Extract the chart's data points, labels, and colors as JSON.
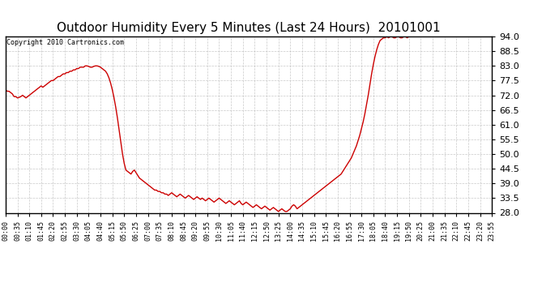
{
  "title": "Outdoor Humidity Every 5 Minutes (Last 24 Hours)  20101001",
  "copyright_text": "Copyright 2010 Cartronics.com",
  "y_ticks": [
    28.0,
    33.5,
    39.0,
    44.5,
    50.0,
    55.5,
    61.0,
    66.5,
    72.0,
    77.5,
    83.0,
    88.5,
    94.0
  ],
  "ylim": [
    28.0,
    94.0
  ],
  "line_color": "#cc0000",
  "bg_color": "#ffffff",
  "grid_color": "#bbbbbb",
  "title_fontsize": 11,
  "x_labels": [
    "00:00",
    "00:35",
    "01:10",
    "01:45",
    "02:20",
    "02:55",
    "03:30",
    "04:05",
    "04:40",
    "05:15",
    "05:50",
    "06:25",
    "07:00",
    "07:35",
    "08:10",
    "08:45",
    "09:20",
    "09:55",
    "10:30",
    "11:05",
    "11:40",
    "12:15",
    "12:50",
    "13:25",
    "14:00",
    "14:35",
    "15:10",
    "15:45",
    "16:20",
    "16:55",
    "17:30",
    "18:05",
    "18:40",
    "19:15",
    "19:50",
    "20:25",
    "21:00",
    "21:35",
    "22:10",
    "22:45",
    "23:20",
    "23:55"
  ],
  "humidity_data": [
    74.0,
    73.5,
    73.5,
    73.0,
    72.5,
    71.5,
    71.5,
    71.0,
    71.2,
    71.5,
    72.0,
    71.5,
    71.0,
    71.5,
    72.0,
    72.5,
    73.0,
    73.5,
    74.0,
    74.5,
    75.0,
    75.5,
    75.0,
    75.5,
    76.0,
    76.5,
    77.0,
    77.5,
    77.5,
    78.0,
    78.5,
    79.0,
    79.0,
    79.5,
    80.0,
    80.0,
    80.5,
    80.5,
    81.0,
    81.0,
    81.5,
    81.5,
    82.0,
    82.0,
    82.5,
    82.5,
    82.5,
    83.0,
    83.0,
    82.8,
    82.5,
    82.5,
    82.8,
    83.0,
    83.0,
    82.8,
    82.5,
    82.0,
    81.5,
    81.0,
    80.0,
    78.5,
    76.5,
    74.0,
    71.0,
    67.5,
    63.5,
    59.0,
    54.5,
    50.0,
    46.5,
    44.0,
    43.5,
    43.0,
    42.5,
    43.5,
    44.0,
    43.0,
    42.0,
    41.0,
    40.5,
    40.0,
    39.5,
    39.0,
    38.5,
    38.0,
    37.5,
    37.0,
    36.5,
    36.5,
    36.0,
    36.0,
    35.5,
    35.5,
    35.0,
    35.0,
    34.5,
    35.0,
    35.5,
    35.0,
    34.5,
    34.0,
    34.5,
    35.0,
    34.5,
    34.0,
    33.5,
    34.0,
    34.5,
    34.0,
    33.5,
    33.0,
    33.5,
    34.0,
    33.5,
    33.0,
    33.5,
    33.0,
    32.5,
    33.0,
    33.5,
    33.0,
    32.5,
    32.0,
    32.5,
    33.0,
    33.5,
    33.0,
    32.5,
    32.0,
    31.5,
    32.0,
    32.5,
    32.0,
    31.5,
    31.0,
    31.5,
    32.0,
    32.5,
    31.5,
    31.0,
    31.5,
    32.0,
    31.5,
    31.0,
    30.5,
    30.0,
    30.5,
    31.0,
    30.5,
    30.0,
    29.5,
    30.0,
    30.5,
    30.0,
    29.5,
    29.0,
    29.5,
    30.0,
    29.5,
    29.0,
    28.5,
    29.0,
    29.5,
    29.0,
    28.5,
    28.5,
    29.0,
    29.5,
    30.5,
    31.0,
    30.5,
    29.5,
    30.0,
    30.5,
    31.0,
    31.5,
    32.0,
    32.5,
    33.0,
    33.5,
    34.0,
    34.5,
    35.0,
    35.5,
    36.0,
    36.5,
    37.0,
    37.5,
    38.0,
    38.5,
    39.0,
    39.5,
    40.0,
    40.5,
    41.0,
    41.5,
    42.0,
    42.5,
    43.5,
    44.5,
    45.5,
    46.5,
    47.5,
    48.5,
    50.0,
    51.5,
    53.0,
    55.0,
    57.0,
    59.5,
    62.0,
    65.0,
    68.5,
    72.0,
    76.0,
    80.0,
    83.5,
    86.5,
    89.0,
    91.0,
    92.5,
    93.0,
    93.5,
    93.5,
    94.0,
    93.5,
    94.0,
    94.0,
    93.5,
    93.5,
    94.0,
    94.0,
    93.5,
    93.5,
    94.0,
    94.0,
    93.5,
    94.0,
    94.0,
    94.0,
    94.0,
    94.0,
    94.0,
    94.0,
    94.0,
    94.0,
    94.0,
    94.0,
    94.0,
    94.0,
    94.0,
    94.0,
    94.0,
    94.0,
    94.0,
    94.0,
    94.0,
    94.0,
    94.0,
    94.0,
    94.0,
    94.0,
    94.0,
    94.0,
    94.0,
    94.0,
    94.0,
    94.0,
    94.0,
    94.0,
    94.0,
    94.0,
    94.0,
    94.0,
    94.0,
    94.0,
    94.0,
    94.0,
    94.0,
    94.0,
    94.0,
    94.0,
    94.0,
    94.0,
    94.0,
    94.0,
    94.0,
    94.0,
    94.0,
    94.0,
    94.0,
    94.0,
    94.0,
    94.0,
    94.0,
    94.0,
    94.0,
    94.0,
    94.0,
    94.0,
    94.0,
    94.0,
    94.0,
    94.0,
    94.0,
    94.0,
    94.0,
    94.0,
    94.0,
    94.0,
    94.0,
    94.0,
    94.0,
    94.0,
    94.0,
    94.0,
    94.0,
    94.0,
    94.0,
    94.0,
    94.0,
    94.0,
    94.0,
    94.0,
    94.0,
    94.0,
    94.0,
    94.0,
    94.0,
    94.0,
    94.0,
    94.0,
    94.0,
    94.0,
    94.0,
    94.0,
    94.0,
    94.0,
    94.0,
    94.0,
    94.0,
    94.0,
    94.0,
    94.0,
    94.0,
    94.0,
    94.0,
    94.0,
    94.0,
    94.0,
    94.0,
    94.0
  ]
}
